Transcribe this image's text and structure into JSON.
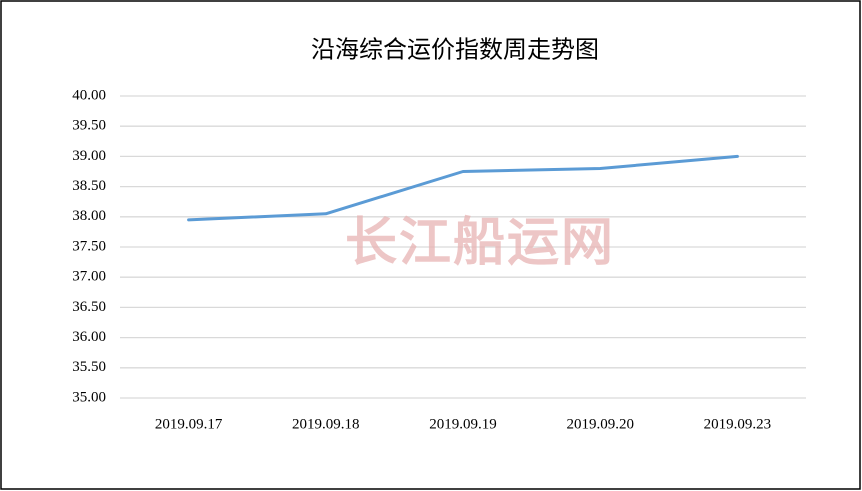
{
  "chart_data": {
    "type": "line",
    "title": "沿海综合运价指数周走势图",
    "watermark": "长江船运网",
    "categories": [
      "2019.09.17",
      "2019.09.18",
      "2019.09.19",
      "2019.09.20",
      "2019.09.23"
    ],
    "values": [
      37.95,
      38.05,
      38.75,
      38.8,
      39.0
    ],
    "color": "#5b9bd5",
    "ylim": [
      35,
      40
    ],
    "yticks": [
      {
        "value": 35,
        "label": "35.00"
      },
      {
        "value": 35.5,
        "label": "35.50"
      },
      {
        "value": 36,
        "label": "36.00"
      },
      {
        "value": 36.5,
        "label": "36.50"
      },
      {
        "value": 37,
        "label": "37.00"
      },
      {
        "value": 37.5,
        "label": "37.50"
      },
      {
        "value": 38,
        "label": "38.00"
      },
      {
        "value": 38.5,
        "label": "38.50"
      },
      {
        "value": 39,
        "label": "39.00"
      },
      {
        "value": 39.5,
        "label": "39.50"
      },
      {
        "value": 40,
        "label": "40.00"
      }
    ],
    "grid": true
  }
}
